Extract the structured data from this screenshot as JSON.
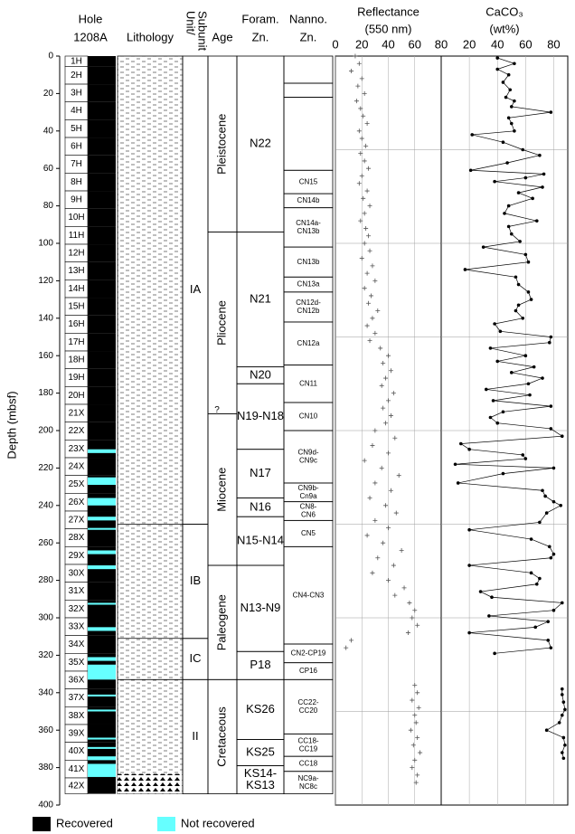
{
  "chart_data": {
    "type": "stratigraphic-column",
    "y_label": "Depth (mbsf)",
    "ylim": [
      0,
      400
    ],
    "yticks": [
      0,
      20,
      40,
      60,
      80,
      100,
      120,
      140,
      160,
      180,
      200,
      220,
      240,
      260,
      280,
      300,
      320,
      340,
      360,
      380,
      400
    ],
    "ygrid": [
      50,
      100,
      150,
      200,
      250,
      300,
      350
    ],
    "hole": {
      "title": [
        "Hole",
        "1208A"
      ],
      "recovered_color": "#000000",
      "not_recovered_color": "#66ffff",
      "cores": [
        {
          "name": "1H",
          "top": 0,
          "bottom": 5.5
        },
        {
          "name": "2H",
          "top": 5.5,
          "bottom": 15
        },
        {
          "name": "3H",
          "top": 15,
          "bottom": 24.5
        },
        {
          "name": "4H",
          "top": 24.5,
          "bottom": 34
        },
        {
          "name": "5H",
          "top": 34,
          "bottom": 43.5
        },
        {
          "name": "6H",
          "top": 43.5,
          "bottom": 53
        },
        {
          "name": "7H",
          "top": 53,
          "bottom": 62.5
        },
        {
          "name": "8H",
          "top": 62.5,
          "bottom": 72
        },
        {
          "name": "9H",
          "top": 72,
          "bottom": 81.5
        },
        {
          "name": "10H",
          "top": 81.5,
          "bottom": 91
        },
        {
          "name": "11H",
          "top": 91,
          "bottom": 100.5
        },
        {
          "name": "12H",
          "top": 100.5,
          "bottom": 110
        },
        {
          "name": "13H",
          "top": 110,
          "bottom": 119.5
        },
        {
          "name": "14H",
          "top": 119.5,
          "bottom": 129
        },
        {
          "name": "15H",
          "top": 129,
          "bottom": 138.5
        },
        {
          "name": "16H",
          "top": 138.5,
          "bottom": 148
        },
        {
          "name": "17H",
          "top": 148,
          "bottom": 157.5
        },
        {
          "name": "18H",
          "top": 157.5,
          "bottom": 167
        },
        {
          "name": "19H",
          "top": 167,
          "bottom": 176.5
        },
        {
          "name": "20H",
          "top": 176.5,
          "bottom": 186
        },
        {
          "name": "21X",
          "top": 186,
          "bottom": 195.5
        },
        {
          "name": "22X",
          "top": 195.5,
          "bottom": 205
        },
        {
          "name": "23X",
          "top": 205,
          "bottom": 214.5
        },
        {
          "name": "24X",
          "top": 214.5,
          "bottom": 224
        },
        {
          "name": "25X",
          "top": 224,
          "bottom": 233.5
        },
        {
          "name": "26X",
          "top": 233.5,
          "bottom": 243
        },
        {
          "name": "27X",
          "top": 243,
          "bottom": 252.5
        },
        {
          "name": "28X",
          "top": 252.5,
          "bottom": 262
        },
        {
          "name": "29X",
          "top": 262,
          "bottom": 271.5
        },
        {
          "name": "30X",
          "top": 271.5,
          "bottom": 281
        },
        {
          "name": "31X",
          "top": 281,
          "bottom": 290.5
        },
        {
          "name": "32X",
          "top": 290.5,
          "bottom": 300
        },
        {
          "name": "33X",
          "top": 300,
          "bottom": 309.5
        },
        {
          "name": "34X",
          "top": 309.5,
          "bottom": 319
        },
        {
          "name": "35X",
          "top": 319,
          "bottom": 328.5
        },
        {
          "name": "36X",
          "top": 328.5,
          "bottom": 338
        },
        {
          "name": "37X",
          "top": 338,
          "bottom": 347.5
        },
        {
          "name": "38X",
          "top": 347.5,
          "bottom": 357
        },
        {
          "name": "39X",
          "top": 357,
          "bottom": 366.5
        },
        {
          "name": "40X",
          "top": 366.5,
          "bottom": 376
        },
        {
          "name": "41X",
          "top": 376,
          "bottom": 385.5
        },
        {
          "name": "42X",
          "top": 385.5,
          "bottom": 394
        }
      ],
      "not_recovered": [
        [
          210,
          212
        ],
        [
          225,
          229
        ],
        [
          236,
          240
        ],
        [
          246,
          248
        ],
        [
          252,
          253
        ],
        [
          264,
          266
        ],
        [
          272,
          274
        ],
        [
          292,
          293
        ],
        [
          305,
          307
        ],
        [
          321,
          323
        ],
        [
          325,
          333
        ],
        [
          341,
          342
        ],
        [
          349,
          350
        ],
        [
          364,
          365
        ],
        [
          369,
          370
        ],
        [
          374,
          376
        ],
        [
          378,
          385
        ]
      ]
    },
    "legend": [
      "Recovered",
      "Not recovered"
    ],
    "lithology_title": "Lithology",
    "unit_title": [
      "Unit/",
      "Subunit"
    ],
    "units": [
      {
        "label": "IA",
        "top": 0,
        "bottom": 250
      },
      {
        "label": "IB",
        "top": 250,
        "bottom": 311
      },
      {
        "label": "IC",
        "top": 311,
        "bottom": 333
      },
      {
        "label": "II",
        "top": 333,
        "bottom": 394
      }
    ],
    "age_title": "Age",
    "ages": [
      {
        "label": "Pleistocene",
        "top": 0,
        "bottom": 94
      },
      {
        "label": "Pliocene",
        "top": 94,
        "bottom": 191
      },
      {
        "label": "Miocene",
        "top": 191,
        "bottom": 272
      },
      {
        "label": "Paleogene",
        "top": 272,
        "bottom": 333
      },
      {
        "label": "Cretaceous",
        "top": 333,
        "bottom": 394
      }
    ],
    "age_uncertain": {
      "label": "?",
      "depth": 191
    },
    "foram_title": [
      "Foram.",
      "Zn."
    ],
    "foram_zones": [
      {
        "label": "N22",
        "top": 0,
        "bottom": 94
      },
      {
        "label": "N21",
        "top": 94,
        "bottom": 166
      },
      {
        "label": "N20",
        "top": 166,
        "bottom": 175
      },
      {
        "label": "N19-N18",
        "top": 175,
        "bottom": 210
      },
      {
        "label": "N17",
        "top": 210,
        "bottom": 236
      },
      {
        "label": "N16",
        "top": 236,
        "bottom": 246
      },
      {
        "label": "N15-N14",
        "top": 246,
        "bottom": 272
      },
      {
        "label": "N13-N9",
        "top": 272,
        "bottom": 318
      },
      {
        "label": "P18",
        "top": 318,
        "bottom": 333
      },
      {
        "label": "KS26",
        "top": 333,
        "bottom": 365
      },
      {
        "label": "KS25",
        "top": 365,
        "bottom": 379
      },
      {
        "label": [
          "KS14-",
          "KS13"
        ],
        "top": 379,
        "bottom": 394
      }
    ],
    "nanno_title": [
      "Nanno.",
      "Zn."
    ],
    "nanno_zones": [
      {
        "label": null,
        "top": 0,
        "bottom": 14.5
      },
      {
        "label": null,
        "top": 14.5,
        "bottom": 22
      },
      {
        "label": null,
        "top": 22,
        "bottom": 61
      },
      {
        "label": "CN15",
        "top": 61,
        "bottom": 73.5
      },
      {
        "label": "CN14b",
        "top": 73.5,
        "bottom": 81
      },
      {
        "label": [
          "CN14a-",
          "CN13b"
        ],
        "top": 81,
        "bottom": 102
      },
      {
        "label": "CN13b",
        "top": 102,
        "bottom": 118
      },
      {
        "label": "CN13a",
        "top": 118,
        "bottom": 126
      },
      {
        "label": [
          "CN12d-",
          "CN12b"
        ],
        "top": 126,
        "bottom": 142
      },
      {
        "label": "CN12a",
        "top": 142,
        "bottom": 165
      },
      {
        "label": "CN11",
        "top": 165,
        "bottom": 185
      },
      {
        "label": "CN10",
        "top": 185,
        "bottom": 200
      },
      {
        "label": [
          "CN9d-",
          "CN9c"
        ],
        "top": 200,
        "bottom": 228
      },
      {
        "label": [
          "CN9b-",
          "Cn9a"
        ],
        "top": 228,
        "bottom": 238
      },
      {
        "label": [
          "CN8-",
          "CN6"
        ],
        "top": 238,
        "bottom": 248
      },
      {
        "label": "CN5",
        "top": 248,
        "bottom": 262
      },
      {
        "label": "CN4-CN3",
        "top": 262,
        "bottom": 314
      },
      {
        "label": "CN2-CP19",
        "top": 314,
        "bottom": 324
      },
      {
        "label": "CP16",
        "top": 324,
        "bottom": 333
      },
      {
        "label": [
          "CC22-",
          "CC20"
        ],
        "top": 333,
        "bottom": 362
      },
      {
        "label": [
          "CC18-",
          "CC19"
        ],
        "top": 362,
        "bottom": 374
      },
      {
        "label": "CC18",
        "top": 374,
        "bottom": 382
      },
      {
        "label": [
          "NC9a-",
          "NC8c"
        ],
        "top": 382,
        "bottom": 394
      }
    ],
    "reflectance": {
      "title": "Reflectance",
      "subtitle": "(550 nm)",
      "color": "#555555",
      "xlim": [
        0,
        80
      ],
      "xticks": [
        0,
        20,
        40,
        60,
        80
      ],
      "depth": [
        0,
        4,
        8,
        12,
        16,
        20,
        24,
        28,
        32,
        36,
        40,
        44,
        48,
        52,
        56,
        60,
        64,
        68,
        72,
        76,
        80,
        84,
        88,
        92,
        96,
        100,
        104,
        108,
        112,
        116,
        120,
        124,
        128,
        132,
        136,
        140,
        144,
        148,
        152,
        156,
        160,
        164,
        168,
        172,
        176,
        180,
        184,
        188,
        192,
        196,
        200,
        204,
        208,
        212,
        216,
        220,
        224,
        228,
        232,
        236,
        240,
        244,
        248,
        252,
        256,
        260,
        264,
        268,
        272,
        276,
        280,
        284,
        288,
        292,
        296,
        300,
        304,
        308,
        312,
        316,
        336,
        340,
        344,
        348,
        352,
        356,
        360,
        364,
        368,
        372,
        376,
        380,
        384,
        388
      ],
      "values": [
        15,
        18,
        12,
        20,
        17,
        22,
        16,
        19,
        21,
        24,
        18,
        20,
        23,
        19,
        22,
        25,
        20,
        18,
        24,
        21,
        26,
        22,
        19,
        23,
        25,
        22,
        26,
        20,
        28,
        24,
        30,
        22,
        27,
        25,
        32,
        28,
        24,
        30,
        26,
        34,
        40,
        36,
        42,
        38,
        35,
        44,
        40,
        36,
        42,
        38,
        30,
        45,
        28,
        40,
        22,
        35,
        48,
        30,
        42,
        26,
        38,
        46,
        30,
        40,
        24,
        36,
        50,
        32,
        44,
        28,
        40,
        52,
        45,
        56,
        60,
        58,
        62,
        55,
        12,
        8,
        60,
        62,
        58,
        63,
        60,
        61,
        57,
        62,
        59,
        64,
        60,
        58,
        62,
        61
      ]
    },
    "caco3": {
      "title": "CaCO₃",
      "subtitle": "(wt%)",
      "color": "#000000",
      "xlim": [
        0,
        90
      ],
      "xticks": [
        20,
        40,
        60,
        80
      ],
      "depth": [
        1,
        4,
        7,
        10,
        14,
        18,
        22,
        24,
        27,
        30,
        33,
        36,
        40,
        42,
        46,
        50,
        53,
        57,
        61,
        63,
        65,
        67,
        70,
        73,
        76,
        80,
        84,
        88,
        91,
        95,
        99,
        102,
        106,
        110,
        114,
        118,
        122,
        126,
        130,
        133,
        136,
        140,
        143,
        147,
        150,
        153,
        156,
        160,
        163,
        166,
        169,
        172,
        175,
        178,
        181,
        184,
        187,
        190,
        193,
        196,
        199,
        203,
        207,
        210,
        213,
        215,
        218,
        220,
        223,
        228,
        232,
        235,
        238,
        240,
        244,
        249,
        253,
        258,
        262,
        266,
        268,
        272,
        276,
        279,
        282,
        286,
        289,
        292,
        296,
        299,
        302,
        305,
        308,
        312,
        316,
        319,
        328,
        338,
        341,
        345,
        349,
        352,
        356,
        360,
        364,
        368,
        372,
        375
      ],
      "values": [
        40,
        52,
        40,
        48,
        44,
        49,
        46,
        52,
        50,
        78,
        48,
        50,
        52,
        22,
        44,
        58,
        70,
        47,
        21,
        73,
        60,
        38,
        72,
        55,
        65,
        48,
        45,
        68,
        48,
        50,
        56,
        30,
        60,
        62,
        17,
        53,
        55,
        62,
        64,
        55,
        53,
        58,
        38,
        42,
        78,
        77,
        35,
        60,
        40,
        66,
        50,
        72,
        62,
        32,
        63,
        37,
        78,
        44,
        35,
        40,
        78,
        86,
        14,
        20,
        58,
        60,
        10,
        80,
        44,
        12,
        72,
        74,
        80,
        85,
        75,
        70,
        20,
        64,
        77,
        80,
        78,
        20,
        64,
        70,
        68,
        28,
        36,
        86,
        80,
        34,
        76,
        67,
        20,
        76,
        78,
        38,
        null,
        86,
        86,
        87,
        88,
        86,
        84,
        75,
        87,
        88,
        86,
        87
      ]
    }
  }
}
